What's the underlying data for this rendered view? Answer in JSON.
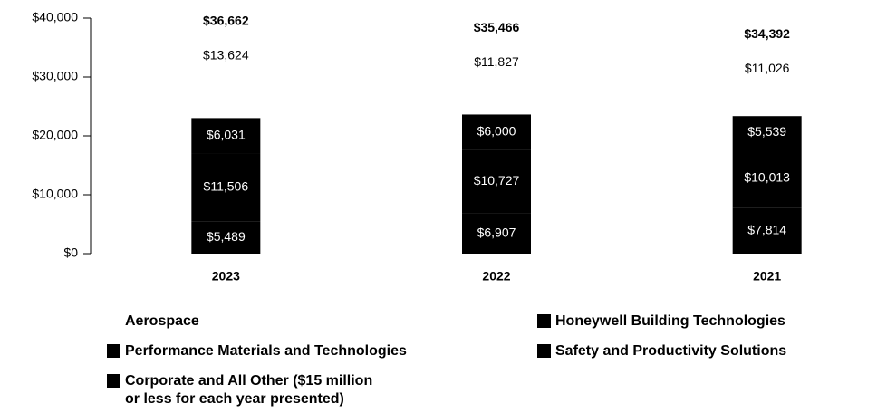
{
  "chart_data": {
    "type": "stacked_bar",
    "categories": [
      "2023",
      "2022",
      "2021"
    ],
    "series": [
      {
        "name": "Aerospace",
        "color": "#ffffff",
        "values": [
          13624,
          11827,
          11026
        ],
        "value_labels": [
          "$13,624",
          "$11,827",
          "$11,026"
        ]
      },
      {
        "name": "Honeywell Building Technologies",
        "color": "#000000",
        "values": [
          6031,
          6000,
          5539
        ],
        "value_labels": [
          "$6,031",
          "$6,000",
          "$5,539"
        ]
      },
      {
        "name": "Performance Materials and Technologies",
        "color": "#000000",
        "values": [
          11506,
          10727,
          10013
        ],
        "value_labels": [
          "$11,506",
          "$10,727",
          "$10,013"
        ]
      },
      {
        "name": "Safety and Productivity Solutions",
        "color": "#000000",
        "values": [
          5489,
          6907,
          7814
        ],
        "value_labels": [
          "$5,489",
          "$6,907",
          "$7,814"
        ]
      },
      {
        "name": "Corporate and All Other ($15 million\nor less for each year presented)",
        "color": "#000000",
        "values": [
          12,
          5,
          0
        ]
      }
    ],
    "totals": [
      36662,
      35466,
      34392
    ],
    "total_labels": [
      "$36,662",
      "$35,466",
      "$34,392"
    ],
    "ylim": [
      0,
      40000
    ],
    "yticks": [
      {
        "value": 0,
        "label": "$0"
      },
      {
        "value": 10000,
        "label": "$10,000"
      },
      {
        "value": 20000,
        "label": "$20,000"
      },
      {
        "value": 30000,
        "label": "$30,000"
      },
      {
        "value": 40000,
        "label": "$40,000"
      }
    ]
  }
}
